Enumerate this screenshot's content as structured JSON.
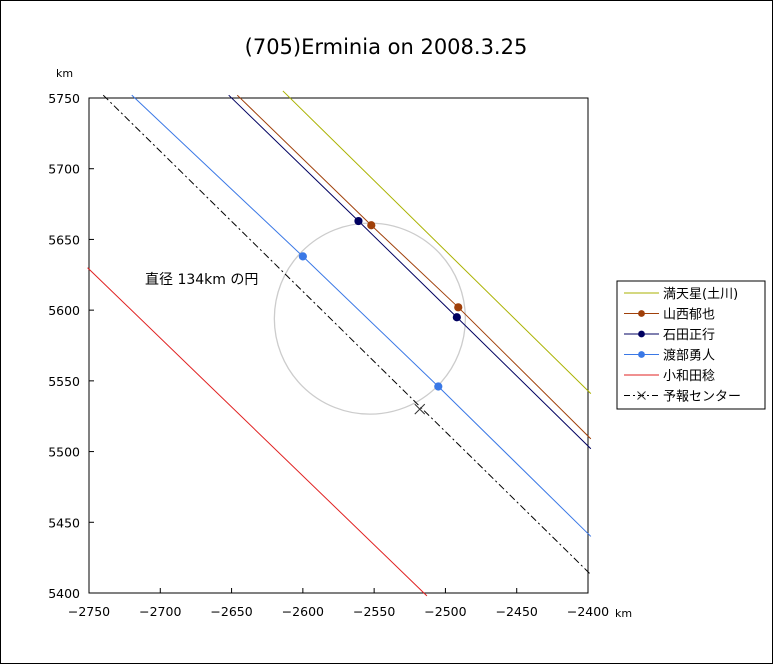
{
  "chart_data": {
    "type": "line",
    "title": "(705)Erminia on 2008.3.25",
    "xlabel": "km",
    "ylabel": "km",
    "xlim": [
      -2750,
      -2400
    ],
    "ylim": [
      5400,
      5750
    ],
    "x_ticks": [
      -2750,
      -2700,
      -2650,
      -2600,
      -2550,
      -2500,
      -2450,
      -2400
    ],
    "y_ticks": [
      5400,
      5450,
      5500,
      5550,
      5600,
      5650,
      5700,
      5750
    ],
    "grid": false,
    "legend_position": "right",
    "series": [
      {
        "name": "満天星(土川)",
        "color": "#aab200",
        "dash": "",
        "marker": "none",
        "line": [
          [
            -2614,
            5755
          ],
          [
            -2398,
            5541
          ]
        ],
        "points": []
      },
      {
        "name": "山西郁也",
        "color": "#a0400a",
        "dash": "",
        "marker": "circle",
        "line": [
          [
            -2646,
            5752
          ],
          [
            -2552,
            5660
          ],
          [
            -2491,
            5602
          ],
          [
            -2398,
            5509
          ]
        ],
        "points": [
          [
            -2552,
            5660
          ],
          [
            -2491,
            5602
          ]
        ]
      },
      {
        "name": "石田正行",
        "color": "#000060",
        "dash": "",
        "marker": "circle",
        "line": [
          [
            -2652,
            5752
          ],
          [
            -2561,
            5663
          ],
          [
            -2492,
            5595
          ],
          [
            -2398,
            5502
          ]
        ],
        "points": [
          [
            -2561,
            5663
          ],
          [
            -2492,
            5595
          ]
        ]
      },
      {
        "name": "渡部勇人",
        "color": "#3a78e6",
        "dash": "",
        "marker": "circle",
        "line": [
          [
            -2720,
            5752
          ],
          [
            -2600,
            5638
          ],
          [
            -2505,
            5546
          ],
          [
            -2398,
            5440
          ]
        ],
        "points": [
          [
            -2600,
            5638
          ],
          [
            -2505,
            5546
          ]
        ]
      },
      {
        "name": "小和田稔",
        "color": "#e02020",
        "dash": "",
        "marker": "none",
        "line": [
          [
            -2751,
            5630
          ],
          [
            -2513,
            5398
          ]
        ],
        "points": []
      },
      {
        "name": "予報センター",
        "color": "#000000",
        "dash": "7,3,2,3",
        "marker": "x",
        "line": [
          [
            -2740,
            5752
          ],
          [
            -2398,
            5413
          ]
        ],
        "points": [
          [
            -2518,
            5530
          ]
        ]
      }
    ],
    "circle": {
      "center": [
        -2553,
        5594
      ],
      "diameter": 134,
      "color": "#cccccc"
    },
    "annotations": [
      {
        "text": "直径 134km の円"
      }
    ]
  }
}
